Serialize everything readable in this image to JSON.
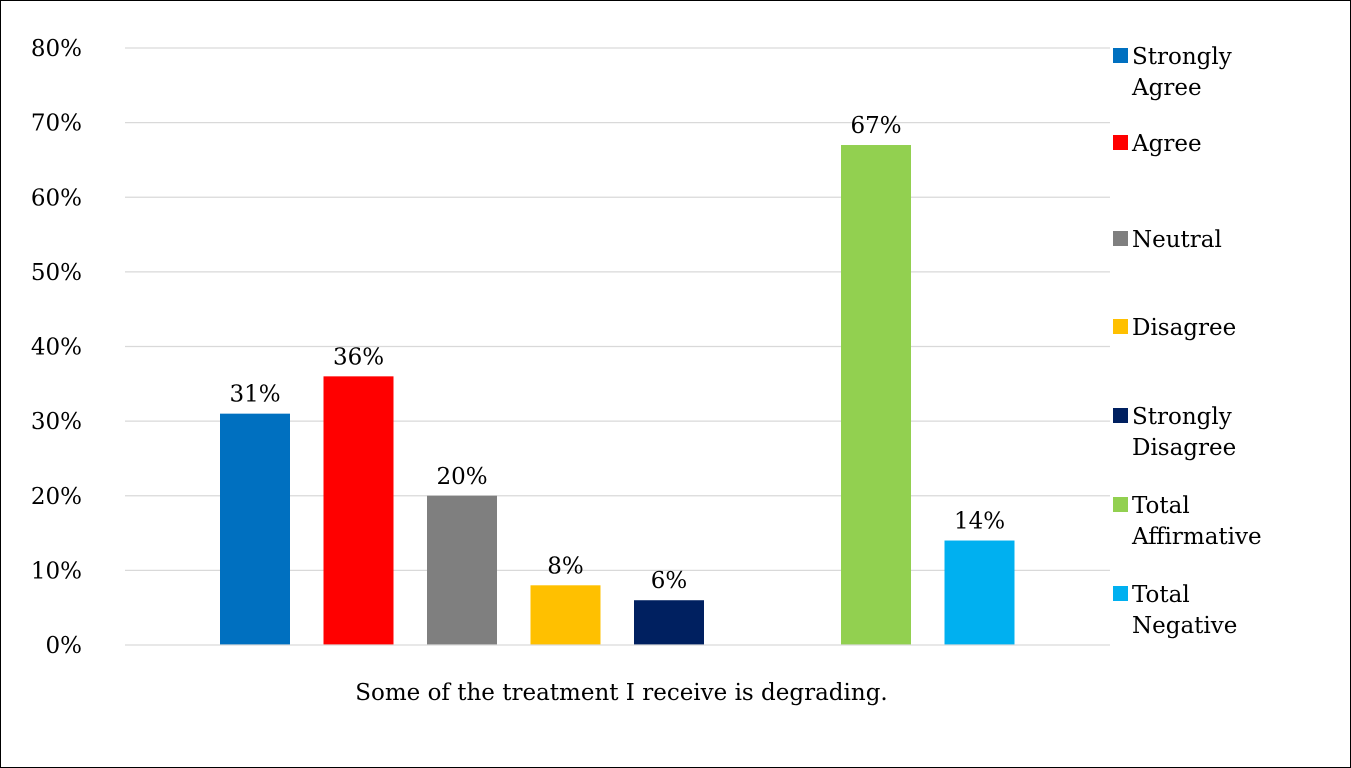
{
  "chart_data": {
    "type": "bar",
    "categories": [
      "Some of the treatment I receive is degrading."
    ],
    "ylim": [
      0,
      80
    ],
    "yticks": [
      0,
      10,
      20,
      30,
      40,
      50,
      60,
      70,
      80
    ],
    "ytick_labels": [
      "0%",
      "10%",
      "20%",
      "30%",
      "40%",
      "50%",
      "60%",
      "70%",
      "80%"
    ],
    "grid": true,
    "legend_position": "right",
    "series": [
      {
        "name": "Strongly Agree",
        "legend_lines": [
          "Strongly",
          "Agree"
        ],
        "values": [
          31
        ],
        "label": "31%",
        "color": "#0070c0"
      },
      {
        "name": "Agree",
        "legend_lines": [
          "Agree"
        ],
        "values": [
          36
        ],
        "label": "36%",
        "color": "#ff0000"
      },
      {
        "name": "Neutral",
        "legend_lines": [
          "Neutral"
        ],
        "values": [
          20
        ],
        "label": "20%",
        "color": "#7f7f7f"
      },
      {
        "name": "Disagree",
        "legend_lines": [
          "Disagree"
        ],
        "values": [
          8
        ],
        "label": "8%",
        "color": "#ffc000"
      },
      {
        "name": "Strongly Disagree",
        "legend_lines": [
          "Strongly",
          "Disagree"
        ],
        "values": [
          6
        ],
        "label": "6%",
        "color": "#002060"
      },
      {
        "name": "",
        "legend_lines": [],
        "values": [
          null
        ],
        "label": "",
        "color": "#ffffff"
      },
      {
        "name": "Total Affirmative",
        "legend_lines": [
          "Total",
          "Affirmative"
        ],
        "values": [
          67
        ],
        "label": "67%",
        "color": "#92d050"
      },
      {
        "name": "Total Negative",
        "legend_lines": [
          "Total",
          "Negative"
        ],
        "values": [
          14
        ],
        "label": "14%",
        "color": "#00b0f0"
      }
    ]
  }
}
